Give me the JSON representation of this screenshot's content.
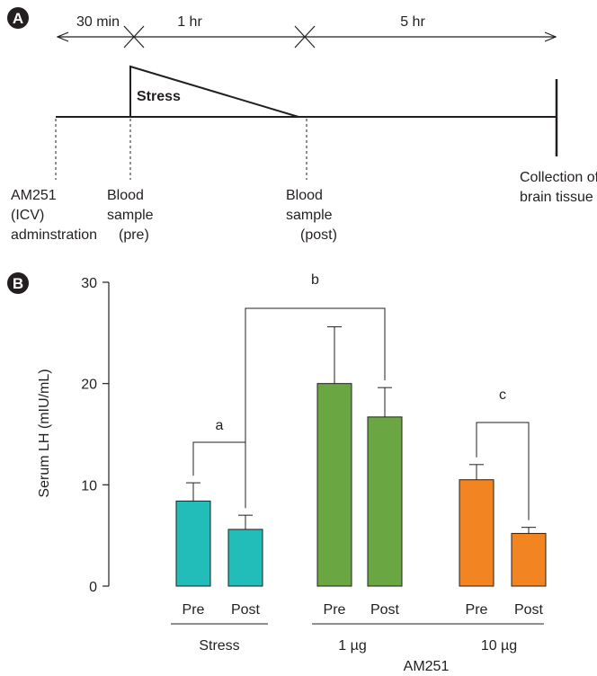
{
  "panel_a": {
    "letter": "A",
    "durations": [
      "30 min",
      "1 hr",
      "5 hr"
    ],
    "stress_label": "Stress",
    "event_labels": [
      [
        "AM251",
        "(ICV)",
        "adminstration"
      ],
      [
        "Blood",
        "sample",
        "(pre)"
      ],
      [
        "Blood",
        "sample",
        "(post)"
      ],
      [
        "Collection of",
        "brain tissue"
      ]
    ]
  },
  "panel_b": {
    "letter": "B",
    "group_labels": [
      "Stress",
      "1 µg",
      "10 µg"
    ],
    "drug_label": "AM251",
    "significance": [
      "a",
      "b",
      "c"
    ]
  },
  "chart_data": {
    "type": "bar",
    "ylabel": "Serum LH (mIU/mL)",
    "ylim": [
      0,
      30
    ],
    "yticks": [
      0,
      10,
      20,
      30
    ],
    "categories": [
      "Pre",
      "Post",
      "Pre",
      "Post",
      "Pre",
      "Post"
    ],
    "groups": [
      "Stress",
      "1 µg",
      "10 µg"
    ],
    "values": [
      8.4,
      5.6,
      20.0,
      16.7,
      10.5,
      5.2
    ],
    "errors": [
      1.8,
      1.4,
      5.6,
      2.9,
      1.5,
      0.6
    ],
    "colors": [
      "#22bcb9",
      "#22bcb9",
      "#6aa743",
      "#6aa743",
      "#f28522",
      "#f28522"
    ],
    "comparisons": [
      {
        "label": "a",
        "from": 0,
        "to": 1
      },
      {
        "label": "b",
        "from": 1,
        "to": 3
      },
      {
        "label": "c",
        "from": 4,
        "to": 5
      }
    ]
  }
}
